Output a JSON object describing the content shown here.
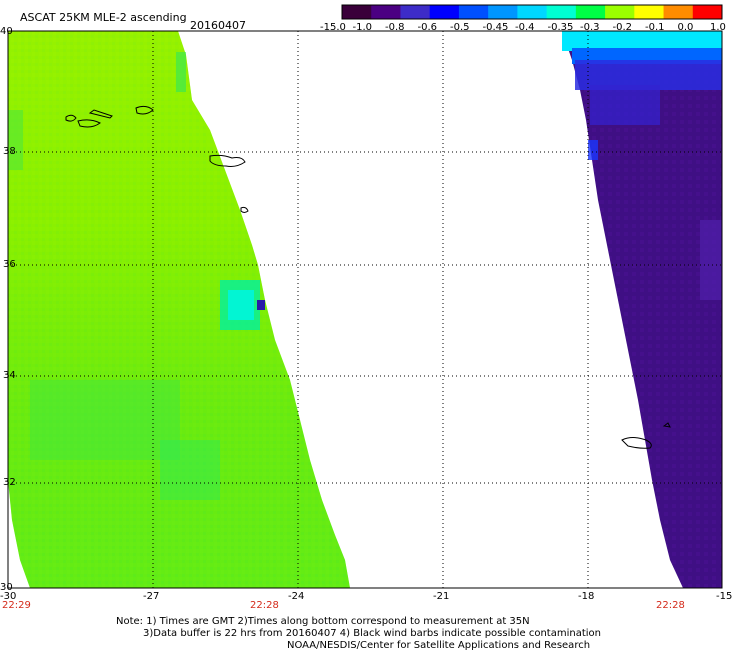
{
  "header": {
    "title": "ASCAT 25KM MLE-2 ascending",
    "date": "20160407"
  },
  "colorbar": {
    "labels": [
      "-15.0",
      "-1.0",
      "-0.8",
      "-0.6",
      "-0.5",
      "-0.45",
      "-0.4",
      "-0.35",
      "-0.3",
      "-0.2",
      "-0.1",
      "0.0",
      "1.0"
    ],
    "colors": [
      "#3a003a",
      "#4b0082",
      "#3d2cc8",
      "#0000ff",
      "#0050ff",
      "#0096ff",
      "#00d7ff",
      "#00ffd2",
      "#00ff46",
      "#9bff00",
      "#ffff00",
      "#ff8c00",
      "#ff0000"
    ]
  },
  "axes": {
    "lat_labels": [
      "40",
      "38",
      "36",
      "34",
      "32",
      "30"
    ],
    "lon_labels": [
      "-30",
      "-27",
      "-24",
      "-21",
      "-18",
      "-15"
    ],
    "grid": "dotted",
    "times": [
      "22:29",
      "22:28",
      "22:28"
    ]
  },
  "footer": {
    "line1": "Note: 1) Times are GMT 2)Times along bottom correspond to measurement at 35N",
    "line2": "3)Data buffer is 22 hrs from 20160407 4) Black wind barbs indicate possible contamination",
    "line3": "NOAA/NESDIS/Center for Satellite Applications and Research"
  }
}
